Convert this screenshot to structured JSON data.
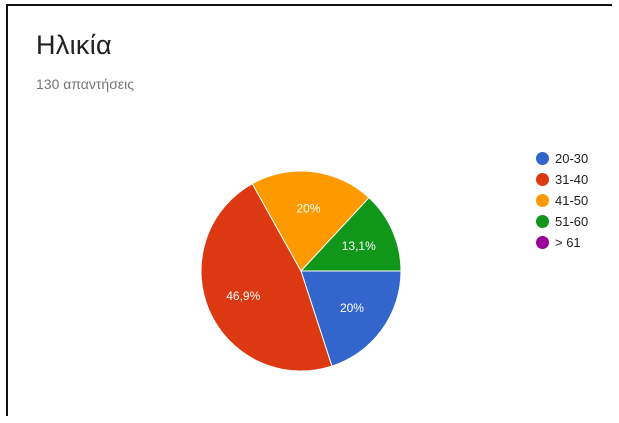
{
  "header": {
    "title": "Ηλικία",
    "subtitle": "130 απαντήσεις"
  },
  "chart_data": {
    "type": "pie",
    "title": "Ηλικία",
    "categories": [
      "20-30",
      "31-40",
      "41-50",
      "51-60",
      "> 61"
    ],
    "values": [
      20,
      46.9,
      20,
      13.1,
      0
    ],
    "value_labels": [
      "20%",
      "46,9%",
      "20%",
      "13,1%",
      ""
    ],
    "colors": [
      "#3366cc",
      "#dc3912",
      "#ff9900",
      "#109618",
      "#990099"
    ],
    "legend_position": "right",
    "start_angle_deg": 90,
    "direction": "clockwise"
  }
}
